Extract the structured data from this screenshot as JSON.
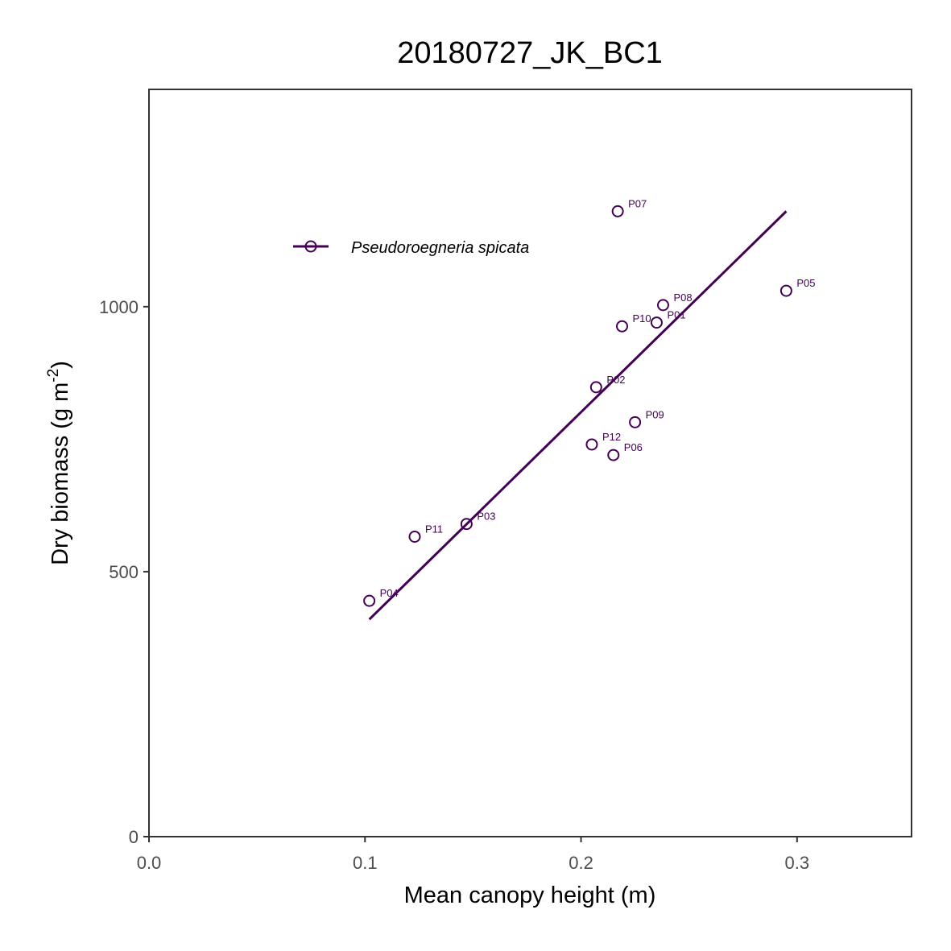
{
  "chart_data": {
    "type": "scatter",
    "title": "20180727_JK_BC1",
    "xlabel": "Mean canopy height (m)",
    "ylabel": "Dry biomass (g m",
    "ylabel_sup": "-2",
    "ylabel_end": ")",
    "xlim": [
      0.0,
      0.353
    ],
    "ylim": [
      0,
      1410
    ],
    "xticks": [
      0.0,
      0.1,
      0.2,
      0.3
    ],
    "xtick_labels": [
      "0.0",
      "0.1",
      "0.2",
      "0.3"
    ],
    "yticks": [
      0,
      500,
      1000
    ],
    "ytick_labels": [
      "0",
      "500",
      "1000"
    ],
    "grid": false,
    "legend_position": "top-left",
    "series": [
      {
        "name": "Pseudoroegneria spicata",
        "color": "#440154",
        "marker": "open-circle",
        "points": [
          {
            "label": "P01",
            "x": 0.235,
            "y": 970
          },
          {
            "label": "P02",
            "x": 0.207,
            "y": 848
          },
          {
            "label": "P03",
            "x": 0.147,
            "y": 590
          },
          {
            "label": "P04",
            "x": 0.102,
            "y": 445
          },
          {
            "label": "P05",
            "x": 0.295,
            "y": 1030
          },
          {
            "label": "P06",
            "x": 0.215,
            "y": 720
          },
          {
            "label": "P07",
            "x": 0.217,
            "y": 1180
          },
          {
            "label": "P08",
            "x": 0.238,
            "y": 1003
          },
          {
            "label": "P09",
            "x": 0.225,
            "y": 782
          },
          {
            "label": "P10",
            "x": 0.219,
            "y": 963
          },
          {
            "label": "P11",
            "x": 0.123,
            "y": 566
          },
          {
            "label": "P12",
            "x": 0.205,
            "y": 740
          }
        ],
        "fit_line": {
          "x": [
            0.102,
            0.295
          ],
          "y": [
            410,
            1180
          ]
        }
      }
    ]
  }
}
